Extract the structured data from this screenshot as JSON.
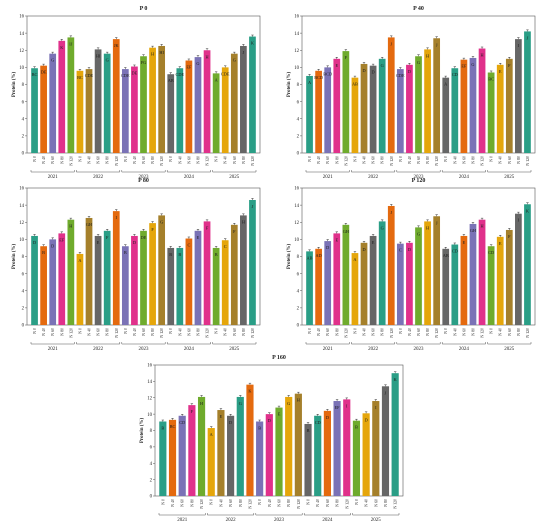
{
  "chart_data": [
    {
      "type": "bar",
      "title": "P 0",
      "ylabel": "Protein (%)",
      "ylim": [
        0,
        16
      ],
      "yticks": [
        0,
        2,
        4,
        6,
        8,
        10,
        12,
        14,
        16
      ],
      "grid": false,
      "groups": [
        "2021",
        "2022",
        "2023",
        "2024",
        "2025"
      ],
      "categories": [
        "N 0",
        "N 40",
        "N 60",
        "N 80",
        "N 120"
      ],
      "values": [
        [
          9.9,
          10.2,
          11.6,
          13.1,
          13.5
        ],
        [
          9.6,
          9.8,
          12.1,
          11.6,
          13.3
        ],
        [
          9.8,
          10.1,
          11.3,
          12.3,
          12.5
        ],
        [
          9.2,
          9.9,
          10.8,
          11.2,
          12.0
        ],
        [
          9.3,
          10.0,
          11.6,
          12.5,
          13.6
        ]
      ],
      "letters": [
        [
          "BC",
          "DE",
          "G",
          "K",
          "IJ"
        ],
        [
          "BC",
          "CDE",
          "HI",
          "G",
          "JK"
        ],
        [
          "CDE",
          "DE",
          "FG",
          "H",
          "HI"
        ],
        [
          "AB",
          "CDE",
          "EF",
          "G",
          "H"
        ],
        [
          "A",
          "CDE",
          "G",
          "J",
          "K"
        ]
      ]
    },
    {
      "type": "bar",
      "title": "P 40",
      "ylabel": "Protein (%)",
      "ylim": [
        0,
        16
      ],
      "yticks": [
        0,
        2,
        4,
        6,
        8,
        10,
        12,
        14,
        16
      ],
      "grid": false,
      "groups": [
        "2021",
        "2022",
        "2023",
        "2024",
        "2025"
      ],
      "categories": [
        "N 0",
        "N 40",
        "N 60",
        "N 80",
        "N 120"
      ],
      "values": [
        [
          9.0,
          9.6,
          10.0,
          11.0,
          11.9
        ],
        [
          8.8,
          10.4,
          10.2,
          11.0,
          13.5
        ],
        [
          9.8,
          10.3,
          11.3,
          12.1,
          13.4
        ],
        [
          8.8,
          9.9,
          10.9,
          11.1,
          12.2
        ],
        [
          9.4,
          10.3,
          11.0,
          13.3,
          14.2
        ]
      ],
      "letters": [
        [
          "A",
          "BCD",
          "BCD",
          "E",
          "F"
        ],
        [
          "AB",
          "D",
          "D",
          "G",
          "J"
        ],
        [
          "CDE",
          "D",
          "G",
          "H",
          "J"
        ],
        [
          "A",
          "CD",
          "EF",
          "G",
          "H"
        ],
        [
          "BC",
          "E",
          "F",
          "I",
          "J"
        ]
      ]
    },
    {
      "type": "bar",
      "title": "P 80",
      "ylabel": "Protein (%)",
      "ylim": [
        0,
        16
      ],
      "yticks": [
        0,
        2,
        4,
        6,
        8,
        10,
        12,
        14,
        16
      ],
      "grid": false,
      "groups": [
        "2021",
        "2022",
        "2023",
        "2024",
        "2025"
      ],
      "categories": [
        "N 0",
        "N 40",
        "N 60",
        "N 80",
        "N 120"
      ],
      "values": [
        [
          10.4,
          9.2,
          10.0,
          10.7,
          12.3
        ],
        [
          8.3,
          12.5,
          10.4,
          11.0,
          13.3
        ],
        [
          9.2,
          10.4,
          11.0,
          11.9,
          12.8
        ],
        [
          9.0,
          9.0,
          10.1,
          11.0,
          12.1
        ],
        [
          9.0,
          9.9,
          11.7,
          12.8,
          14.6
        ]
      ],
      "letters": [
        [
          "D",
          "B",
          "D",
          "EF",
          "H"
        ],
        [
          "A",
          "GH",
          "E",
          "F",
          "I"
        ],
        [
          "B",
          "D",
          "DE",
          "F",
          "G"
        ],
        [
          "B",
          "B",
          "C",
          "E",
          "F"
        ],
        [
          "B",
          "C",
          "F",
          "H",
          "J"
        ]
      ]
    },
    {
      "type": "bar",
      "title": "P 120",
      "ylabel": "Protein (%)",
      "ylim": [
        0,
        16
      ],
      "yticks": [
        0,
        2,
        4,
        6,
        8,
        10,
        12,
        14,
        16
      ],
      "grid": false,
      "groups": [
        "2021",
        "2022",
        "2023",
        "2024",
        "2025"
      ],
      "categories": [
        "N 0",
        "N 40",
        "N 60",
        "N 80",
        "N 120"
      ],
      "values": [
        [
          8.6,
          8.9,
          9.8,
          10.7,
          11.7
        ],
        [
          8.4,
          9.6,
          10.4,
          12.1,
          13.9
        ],
        [
          9.5,
          9.6,
          11.4,
          12.1,
          12.7
        ],
        [
          8.9,
          9.4,
          10.4,
          11.8,
          12.3
        ],
        [
          9.2,
          10.3,
          11.1,
          13.0,
          14.1
        ]
      ],
      "letters": [
        [
          "AB",
          "AD",
          "D",
          "E",
          "GH"
        ],
        [
          "A",
          "D",
          "E",
          "G",
          "J"
        ],
        [
          "C",
          "D",
          "G",
          "H",
          "J"
        ],
        [
          "AB",
          "CD",
          "E",
          "GH",
          "H"
        ],
        [
          "CD",
          "E",
          "F",
          "I",
          "K"
        ]
      ]
    },
    {
      "type": "bar",
      "title": "P 160",
      "ylabel": "Protein (%)",
      "ylim": [
        0,
        16
      ],
      "yticks": [
        0,
        2,
        4,
        6,
        8,
        10,
        12,
        14,
        16
      ],
      "grid": false,
      "groups": [
        "2021",
        "2022",
        "2023",
        "2024",
        "2025"
      ],
      "categories": [
        "N 0",
        "N 40",
        "N 60",
        "N 80",
        "N 120"
      ],
      "values": [
        [
          9.1,
          9.3,
          9.8,
          11.1,
          12.1
        ],
        [
          8.3,
          10.5,
          9.8,
          12.1,
          13.6
        ],
        [
          9.1,
          10.0,
          10.8,
          12.1,
          12.5
        ],
        [
          8.8,
          9.8,
          10.4,
          11.6,
          11.8
        ],
        [
          9.2,
          10.1,
          11.6,
          13.4,
          15.0
        ]
      ],
      "letters": [
        [
          "B",
          "BC",
          "CD",
          "F",
          "H"
        ],
        [
          "A",
          "E",
          "D",
          "G",
          "K"
        ],
        [
          "B",
          "D",
          "E",
          "G",
          "H"
        ],
        [
          "B",
          "CD",
          "D",
          "EF",
          "I"
        ],
        [
          "B",
          "D",
          "I",
          "J",
          "K"
        ]
      ]
    }
  ],
  "colors": {
    "series": [
      "#2a9e86",
      "#e46a0f",
      "#7a72b6",
      "#e0318b",
      "#6fab2d",
      "#e5a60b",
      "#a5802b",
      "#666666"
    ],
    "axis": "#555555",
    "text": "#222222"
  }
}
